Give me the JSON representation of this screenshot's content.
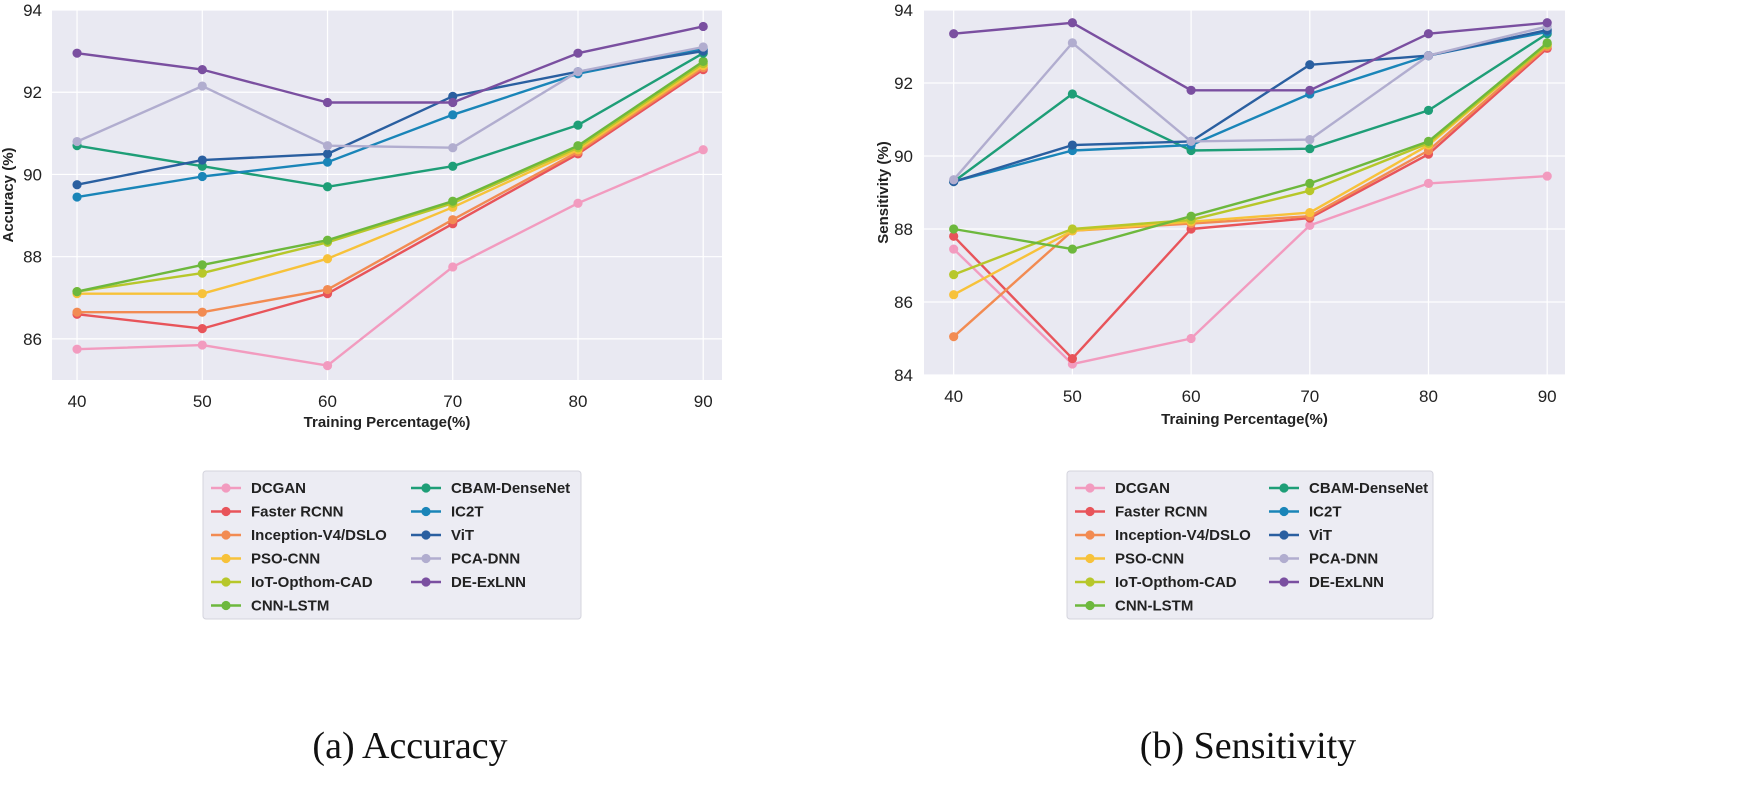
{
  "chart_data": [
    {
      "type": "line",
      "caption": "(a) Accuracy",
      "xlabel": "Training Percentage(%)",
      "ylabel": "Accuracy (%)",
      "x": [
        40,
        50,
        60,
        70,
        80,
        90
      ],
      "xlim": [
        38,
        91.5
      ],
      "ylim": [
        85,
        94
      ],
      "xticks": [
        "40",
        "50",
        "60",
        "70",
        "80",
        "90"
      ],
      "yticks": [
        "86",
        "88",
        "90",
        "92",
        "94"
      ],
      "ytick_values": [
        86,
        88,
        90,
        92,
        94
      ],
      "grid": true,
      "series": [
        {
          "name": "DCGAN",
          "color": "#f29bbf",
          "values": [
            85.75,
            85.85,
            85.35,
            87.75,
            89.3,
            90.6
          ]
        },
        {
          "name": "Faster RCNN",
          "color": "#e8545a",
          "values": [
            86.6,
            86.25,
            87.1,
            88.8,
            90.5,
            92.55
          ]
        },
        {
          "name": "Inception-V4/DSLO",
          "color": "#f28b52",
          "values": [
            86.65,
            86.65,
            87.2,
            88.9,
            90.55,
            92.6
          ]
        },
        {
          "name": "PSO-CNN",
          "color": "#f7c23a",
          "values": [
            87.1,
            87.1,
            87.95,
            89.2,
            90.6,
            92.65
          ]
        },
        {
          "name": "IoT-Opthom-CAD",
          "color": "#b7c72a",
          "values": [
            87.15,
            87.6,
            88.35,
            89.3,
            90.65,
            92.7
          ]
        },
        {
          "name": "CNN-LSTM",
          "color": "#6db83d",
          "values": [
            87.15,
            87.8,
            88.4,
            89.35,
            90.7,
            92.75
          ]
        },
        {
          "name": "CBAM-DenseNet",
          "color": "#1e9e77",
          "values": [
            90.7,
            90.2,
            89.7,
            90.2,
            91.2,
            92.95
          ]
        },
        {
          "name": "IC2T",
          "color": "#1a85b8",
          "values": [
            89.45,
            89.95,
            90.3,
            91.45,
            92.45,
            93.05
          ]
        },
        {
          "name": "ViT",
          "color": "#2a5fa0",
          "values": [
            89.75,
            90.35,
            90.5,
            91.9,
            92.5,
            93.0
          ]
        },
        {
          "name": "PCA-DNN",
          "color": "#b1adcf",
          "values": [
            90.8,
            92.15,
            90.7,
            90.65,
            92.5,
            93.1
          ]
        },
        {
          "name": "DE-ExLNN",
          "color": "#7a4fa0",
          "values": [
            92.95,
            92.55,
            91.75,
            91.75,
            92.95,
            93.6
          ]
        }
      ]
    },
    {
      "type": "line",
      "caption": "(b) Sensitivity",
      "xlabel": "Training Percentage(%)",
      "ylabel": "Sensitivity (%)",
      "x": [
        40,
        50,
        60,
        70,
        80,
        90
      ],
      "xlim": [
        37.5,
        91.5
      ],
      "ylim": [
        84,
        94
      ],
      "xticks": [
        "40",
        "50",
        "60",
        "70",
        "80",
        "90"
      ],
      "yticks": [
        "84",
        "86",
        "88",
        "90",
        "92",
        "94"
      ],
      "ytick_values": [
        84,
        86,
        88,
        90,
        92,
        94
      ],
      "grid": true,
      "series": [
        {
          "name": "DCGAN",
          "color": "#f29bbf",
          "values": [
            87.45,
            84.3,
            85.0,
            88.1,
            89.25,
            89.45
          ]
        },
        {
          "name": "Faster RCNN",
          "color": "#e8545a",
          "values": [
            87.8,
            84.45,
            88.0,
            88.3,
            90.05,
            92.95
          ]
        },
        {
          "name": "Inception-V4/DSLO",
          "color": "#f28b52",
          "values": [
            85.05,
            87.95,
            88.15,
            88.35,
            90.15,
            93.0
          ]
        },
        {
          "name": "PSO-CNN",
          "color": "#f7c23a",
          "values": [
            86.2,
            87.95,
            88.2,
            88.45,
            90.3,
            93.05
          ]
        },
        {
          "name": "IoT-Opthom-CAD",
          "color": "#b7c72a",
          "values": [
            86.75,
            88.0,
            88.25,
            89.05,
            90.35,
            93.05
          ]
        },
        {
          "name": "CNN-LSTM",
          "color": "#6db83d",
          "values": [
            88.0,
            87.45,
            88.35,
            89.25,
            90.4,
            93.1
          ]
        },
        {
          "name": "CBAM-DenseNet",
          "color": "#1e9e77",
          "values": [
            89.3,
            91.7,
            90.15,
            90.2,
            91.25,
            93.35
          ]
        },
        {
          "name": "IC2T",
          "color": "#1a85b8",
          "values": [
            89.3,
            90.15,
            90.3,
            91.7,
            92.75,
            93.4
          ]
        },
        {
          "name": "ViT",
          "color": "#2a5fa0",
          "values": [
            89.3,
            90.3,
            90.4,
            92.5,
            92.75,
            93.45
          ]
        },
        {
          "name": "PCA-DNN",
          "color": "#b1adcf",
          "values": [
            89.35,
            93.1,
            90.4,
            90.45,
            92.75,
            93.55
          ]
        },
        {
          "name": "DE-ExLNN",
          "color": "#7a4fa0",
          "values": [
            93.35,
            93.65,
            91.8,
            91.8,
            93.35,
            93.65
          ]
        }
      ]
    }
  ]
}
